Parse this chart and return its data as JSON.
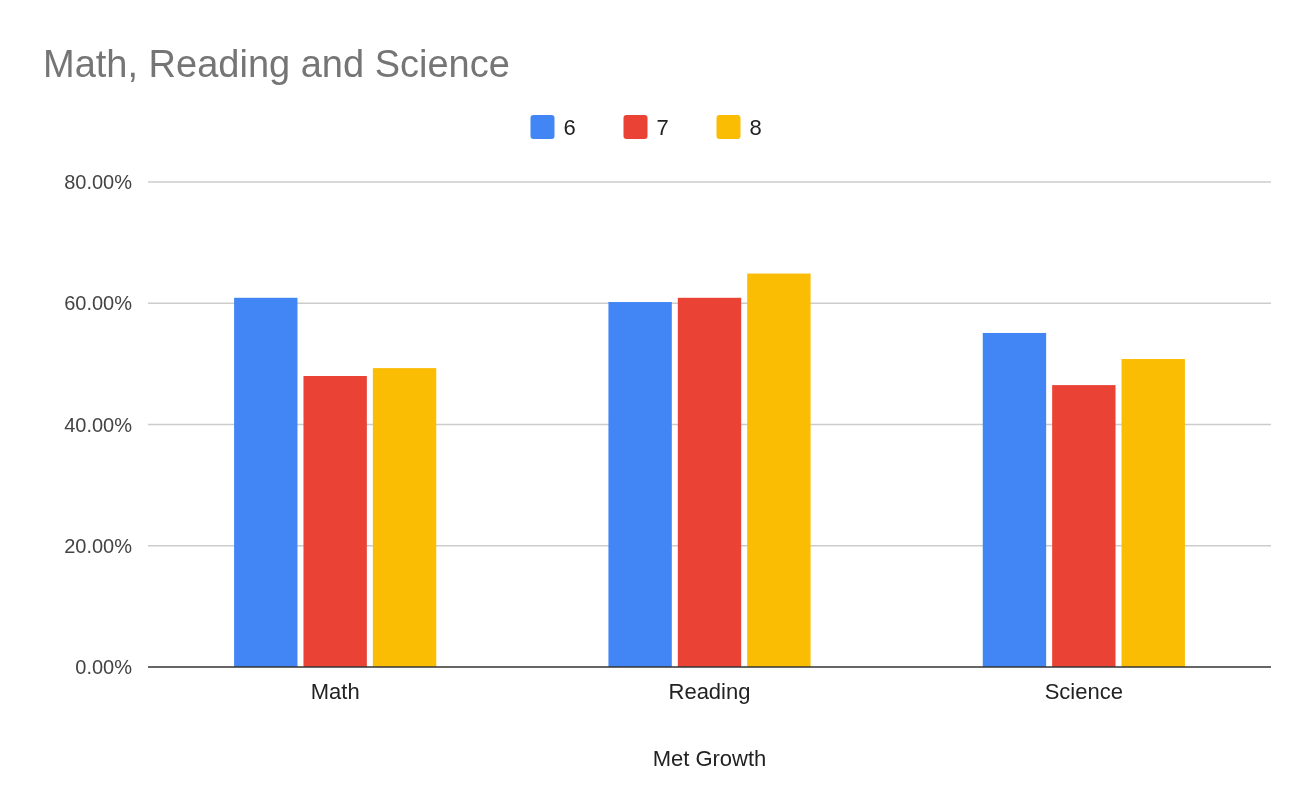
{
  "chart_data": {
    "type": "bar",
    "title": "Math, Reading and Science",
    "xlabel": "Met Growth",
    "categories": [
      "Math",
      "Reading",
      "Science"
    ],
    "series": [
      {
        "name": "6",
        "color": "#4285f4",
        "values": [
          60.9,
          60.2,
          55.1
        ]
      },
      {
        "name": "7",
        "color": "#ea4335",
        "values": [
          48.0,
          60.9,
          46.5
        ]
      },
      {
        "name": "8",
        "color": "#fbbc04",
        "values": [
          49.3,
          64.9,
          50.8
        ]
      }
    ],
    "ylim": [
      0,
      80
    ],
    "yticks": [
      {
        "value": 0,
        "label": "0.00%"
      },
      {
        "value": 20,
        "label": "20.00%"
      },
      {
        "value": 40,
        "label": "40.00%"
      },
      {
        "value": 60,
        "label": "60.00%"
      },
      {
        "value": 80,
        "label": "80.00%"
      }
    ],
    "grid": "y",
    "legend": "top"
  }
}
